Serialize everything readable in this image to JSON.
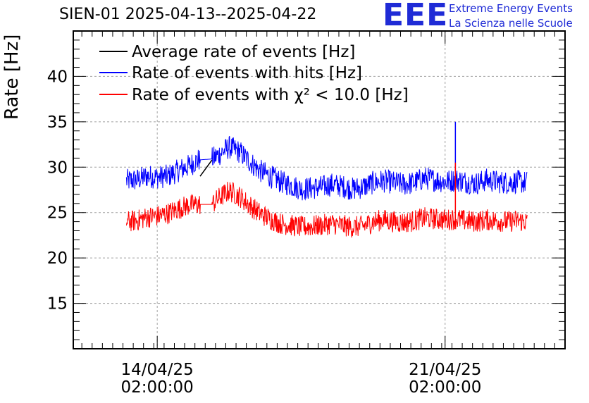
{
  "title": "SIEN-01 2025-04-13--2025-04-22",
  "logo": {
    "mark": "EEE",
    "line1": "Extreme Energy Events",
    "line2": "La Scienza nelle Scuole"
  },
  "chart_data": {
    "type": "line",
    "xlabel": "",
    "ylabel": "Rate [Hz]",
    "ylim": [
      10,
      45
    ],
    "yticks": [
      15,
      20,
      25,
      30,
      35,
      40
    ],
    "xlim": [
      "2025-04-12 01:00",
      "2025-04-24 00:00"
    ],
    "xticks": [
      {
        "date": "2025-04-14 02:00",
        "line1": "14/04/25",
        "line2": "02:00:00"
      },
      {
        "date": "2025-04-21 02:00",
        "line1": "21/04/25",
        "line2": "02:00:00"
      }
    ],
    "grid": true,
    "legend_position": "top-left",
    "gap": [
      "2025-04-15 03:00",
      "2025-04-15 10:00"
    ],
    "series": [
      {
        "name": "Average rate of events [Hz]",
        "color": "#000000",
        "noise": 0,
        "x": [
          "2025-04-15 03:00",
          "2025-04-15 10:00"
        ],
        "y": [
          29.0,
          30.8
        ]
      },
      {
        "name": "Rate of events with hits [Hz]",
        "color": "#0000ff",
        "noise": 1.3,
        "x": [
          "2025-04-13 08:00",
          "2025-04-13 14:00",
          "2025-04-13 20:00",
          "2025-04-14 02:00",
          "2025-04-14 08:00",
          "2025-04-14 14:00",
          "2025-04-14 20:00",
          "2025-04-15 02:00",
          "2025-04-15 10:00",
          "2025-04-15 14:00",
          "2025-04-15 20:00",
          "2025-04-16 02:00",
          "2025-04-16 08:00",
          "2025-04-16 14:00",
          "2025-04-16 20:00",
          "2025-04-17 02:00",
          "2025-04-17 08:00",
          "2025-04-17 14:00",
          "2025-04-17 20:00",
          "2025-04-18 02:00",
          "2025-04-18 08:00",
          "2025-04-18 14:00",
          "2025-04-18 20:00",
          "2025-04-19 02:00",
          "2025-04-19 08:00",
          "2025-04-19 14:00",
          "2025-04-19 20:00",
          "2025-04-20 02:00",
          "2025-04-20 08:00",
          "2025-04-20 14:00",
          "2025-04-20 20:00",
          "2025-04-21 02:00",
          "2025-04-21 08:00",
          "2025-04-21 14:00",
          "2025-04-21 20:00",
          "2025-04-22 02:00",
          "2025-04-22 08:00",
          "2025-04-22 14:00",
          "2025-04-22 20:00",
          "2025-04-23 02:00"
        ],
        "y": [
          28.5,
          28.6,
          29.0,
          28.9,
          29.0,
          29.6,
          30.1,
          30.8,
          30.9,
          31.4,
          32.2,
          31.7,
          30.6,
          29.6,
          29.0,
          28.4,
          28.0,
          27.6,
          27.7,
          27.8,
          28.1,
          27.9,
          27.6,
          27.8,
          28.3,
          28.5,
          28.3,
          28.1,
          28.3,
          28.8,
          28.6,
          28.4,
          28.6,
          28.4,
          28.2,
          28.6,
          28.4,
          28.3,
          28.4,
          28.3
        ]
      },
      {
        "name": "Rate of events with χ² < 10.0 [Hz]",
        "color": "#ff0000",
        "noise": 1.2,
        "x": [
          "2025-04-13 08:00",
          "2025-04-13 14:00",
          "2025-04-13 20:00",
          "2025-04-14 02:00",
          "2025-04-14 08:00",
          "2025-04-14 14:00",
          "2025-04-14 20:00",
          "2025-04-15 02:00",
          "2025-04-15 10:00",
          "2025-04-15 14:00",
          "2025-04-15 20:00",
          "2025-04-16 02:00",
          "2025-04-16 08:00",
          "2025-04-16 14:00",
          "2025-04-16 20:00",
          "2025-04-17 02:00",
          "2025-04-17 08:00",
          "2025-04-17 14:00",
          "2025-04-17 20:00",
          "2025-04-18 02:00",
          "2025-04-18 08:00",
          "2025-04-18 14:00",
          "2025-04-18 20:00",
          "2025-04-19 02:00",
          "2025-04-19 08:00",
          "2025-04-19 14:00",
          "2025-04-19 20:00",
          "2025-04-20 02:00",
          "2025-04-20 08:00",
          "2025-04-20 14:00",
          "2025-04-20 20:00",
          "2025-04-21 02:00",
          "2025-04-21 08:00",
          "2025-04-21 14:00",
          "2025-04-21 20:00",
          "2025-04-22 02:00",
          "2025-04-22 08:00",
          "2025-04-22 14:00",
          "2025-04-22 20:00",
          "2025-04-23 02:00"
        ],
        "y": [
          24.0,
          24.1,
          24.5,
          24.6,
          24.9,
          25.4,
          25.8,
          25.9,
          25.9,
          26.6,
          27.4,
          26.8,
          25.8,
          24.9,
          24.3,
          23.8,
          23.6,
          23.4,
          23.5,
          23.6,
          23.8,
          23.6,
          23.4,
          23.5,
          24.0,
          24.2,
          24.0,
          23.9,
          24.1,
          24.4,
          24.3,
          24.2,
          24.3,
          24.1,
          24.0,
          24.2,
          24.1,
          24.0,
          24.1,
          24.0
        ]
      }
    ],
    "spikes": [
      {
        "series": 1,
        "x": "2025-04-21 08:00",
        "y": 35.0
      },
      {
        "series": 2,
        "x": "2025-04-21 08:00",
        "y": 30.5
      }
    ]
  }
}
